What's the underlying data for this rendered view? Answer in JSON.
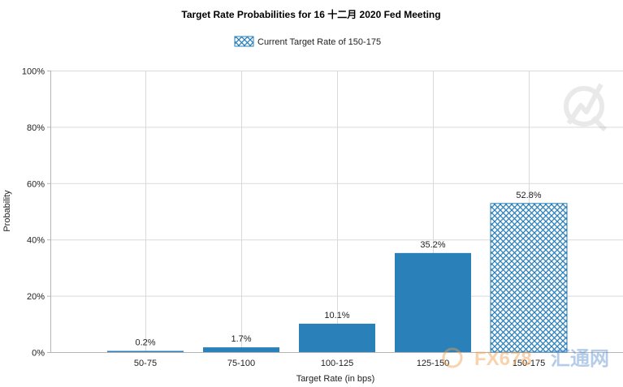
{
  "chart_data": {
    "type": "bar",
    "title": "Target Rate Probabilities for 16 十二月 2020 Fed Meeting",
    "legend": {
      "label": "Current Target Rate of 150-175",
      "placement": "top-center"
    },
    "xlabel": "Target Rate (in bps)",
    "ylabel": "Probability",
    "categories": [
      "50-75",
      "75-100",
      "100-125",
      "125-150",
      "150-175"
    ],
    "values": [
      0.2,
      1.7,
      10.1,
      35.2,
      52.8
    ],
    "data_labels": [
      "0.2%",
      "1.7%",
      "10.1%",
      "35.2%",
      "52.8%"
    ],
    "highlight_category": "150-175",
    "ylim": [
      0,
      100
    ],
    "yticks": [
      0,
      20,
      40,
      60,
      80,
      100
    ],
    "ytick_labels": [
      "0%",
      "20%",
      "40%",
      "60%",
      "80%",
      "100%"
    ],
    "grid": true,
    "colors": {
      "bar": "#2a80b9",
      "highlight_hatch": "#2a80b9",
      "highlight_bg": "#ffffff"
    }
  },
  "watermark": {
    "text_fx": "FX678",
    "text_cn": "汇通网"
  }
}
